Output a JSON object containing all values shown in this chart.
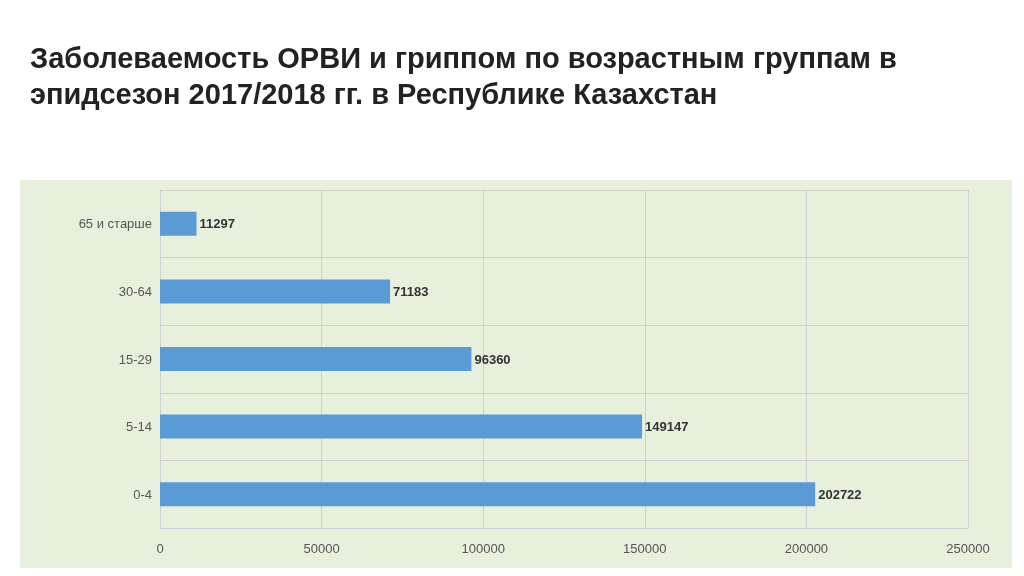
{
  "chart_data": {
    "type": "bar",
    "title": "Заболеваемость ОРВИ и гриппом по возрастным группам в эпидсезон 2017/2018 гг. в Республике Казахстан",
    "orientation": "horizontal",
    "categories": [
      "65 и старше",
      "30-64",
      "15-29",
      "5-14",
      "0-4"
    ],
    "values": [
      11297,
      71183,
      96360,
      149147,
      202722
    ],
    "color": "#5b9bd5",
    "xlim": [
      0,
      250000
    ],
    "xticks": [
      0,
      50000,
      100000,
      150000,
      200000,
      250000
    ],
    "grid": true,
    "data_labels": true
  }
}
